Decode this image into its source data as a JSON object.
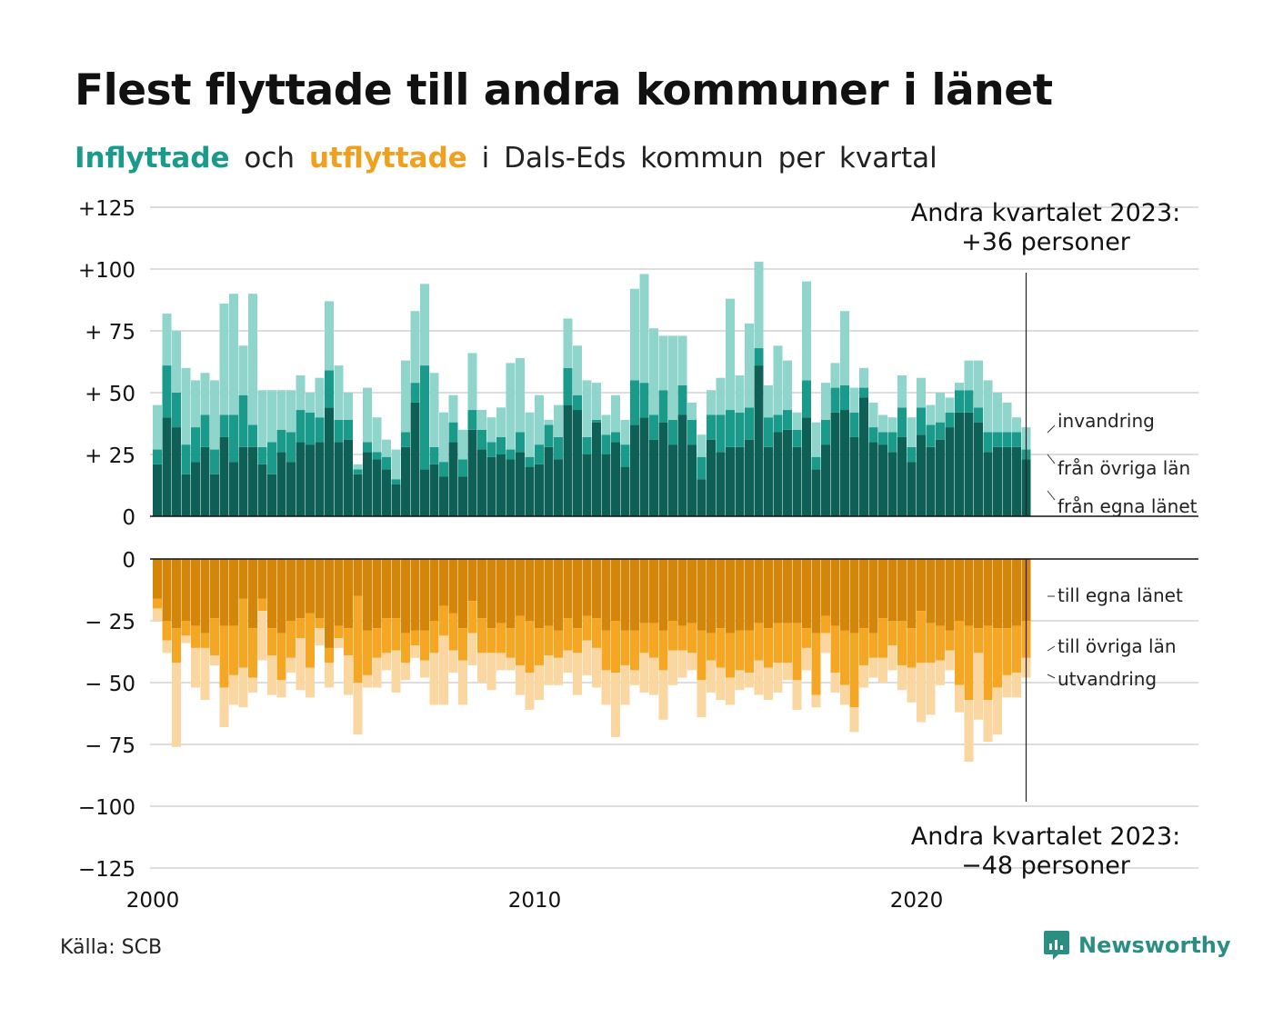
{
  "title": "Flest flyttade till andra kommuner i länet",
  "subtitle": {
    "part1": "Inflyttade",
    "part2": "och",
    "part3": "utflyttade",
    "part4": "i Dals-Eds kommun per kvartal"
  },
  "source": "Källa: SCB",
  "logo": "Newsworthy",
  "colors": {
    "in_egna": "#0e5f56",
    "in_ovriga": "#1a9a8a",
    "in_invandring": "#8fd5cc",
    "ut_egna": "#d4860b",
    "ut_ovriga": "#f5a623",
    "ut_utvandring": "#fad7a0",
    "grid": "#dddddd",
    "axis": "#111111"
  },
  "chart_data": {
    "type": "bar",
    "stacked": true,
    "x_start": 2000,
    "x_ticks": [
      "2000",
      "2010",
      "2020"
    ],
    "y_ticks_top": [
      "+125",
      "+100",
      "+ 75",
      "+ 50",
      "+ 25",
      "0"
    ],
    "y_ticks_bottom": [
      "0",
      "− 25",
      "− 50",
      "− 75",
      "−100",
      "−125"
    ],
    "ylim_top": [
      0,
      125
    ],
    "ylim_bottom": [
      -125,
      0
    ],
    "grid": true,
    "annotation_top": [
      "Andra kvartalet 2023:",
      "+36 personer"
    ],
    "annotation_bottom": [
      "Andra kvartalet 2023:",
      "−48 personer"
    ],
    "labels_in": [
      "invandring",
      "från övriga län",
      "från egna länet"
    ],
    "labels_out": [
      "till egna länet",
      "till övriga län",
      "utvandring"
    ],
    "inflyttade": {
      "fran_egna_lanet": [
        21,
        40,
        36,
        17,
        22,
        28,
        17,
        32,
        22,
        28,
        28,
        21,
        17,
        26,
        22,
        30,
        29,
        30,
        44,
        30,
        31,
        17,
        26,
        23,
        19,
        13,
        28,
        46,
        19,
        21,
        16,
        30,
        16,
        35,
        27,
        24,
        25,
        23,
        26,
        20,
        21,
        28,
        23,
        45,
        43,
        25,
        38,
        25,
        30,
        20,
        37,
        40,
        31,
        38,
        29,
        41,
        29,
        15,
        31,
        26,
        28,
        28,
        31,
        61,
        28,
        34,
        35,
        28,
        40,
        19,
        29,
        42,
        43,
        32,
        48,
        30,
        29,
        26,
        32,
        22,
        33,
        28,
        31,
        36,
        42,
        42,
        38,
        26,
        28,
        28,
        28,
        23
      ],
      "fran_ovriga_lan": [
        6,
        21,
        14,
        12,
        14,
        13,
        10,
        9,
        19,
        21,
        9,
        7,
        13,
        9,
        12,
        13,
        13,
        10,
        15,
        9,
        8,
        2,
        4,
        3,
        5,
        2,
        6,
        8,
        42,
        7,
        6,
        8,
        7,
        8,
        8,
        6,
        7,
        4,
        8,
        4,
        8,
        9,
        9,
        15,
        6,
        7,
        1,
        8,
        4,
        9,
        18,
        14,
        10,
        13,
        10,
        12,
        10,
        9,
        10,
        15,
        15,
        14,
        13,
        7,
        12,
        7,
        8,
        7,
        15,
        5,
        10,
        10,
        10,
        10,
        4,
        6,
        5,
        8,
        12,
        6,
        11,
        9,
        7,
        6,
        9,
        9,
        6,
        8,
        6,
        6,
        6,
        4
      ],
      "invandring": [
        18,
        21,
        25,
        31,
        19,
        17,
        28,
        45,
        49,
        20,
        53,
        23,
        21,
        16,
        17,
        14,
        8,
        16,
        28,
        22,
        11,
        2,
        22,
        14,
        7,
        12,
        29,
        29,
        33,
        30,
        20,
        11,
        12,
        23,
        8,
        10,
        12,
        35,
        30,
        18,
        20,
        2,
        13,
        20,
        20,
        23,
        15,
        8,
        15,
        10,
        37,
        44,
        35,
        22,
        34,
        20,
        7,
        9,
        10,
        15,
        45,
        15,
        34,
        35,
        13,
        28,
        20,
        7,
        40,
        14,
        15,
        10,
        30,
        10,
        8,
        10,
        7,
        6,
        13,
        12,
        12,
        8,
        12,
        6,
        3,
        12,
        19,
        21,
        16,
        12,
        6,
        9
      ]
    },
    "utflyttade": {
      "till_egna_lanet": [
        16,
        25,
        28,
        25,
        27,
        30,
        24,
        27,
        27,
        16,
        28,
        16,
        28,
        30,
        25,
        24,
        22,
        24,
        36,
        27,
        28,
        15,
        29,
        28,
        24,
        24,
        30,
        29,
        29,
        25,
        19,
        22,
        28,
        17,
        24,
        28,
        26,
        28,
        23,
        25,
        28,
        27,
        29,
        24,
        28,
        23,
        24,
        29,
        25,
        29,
        29,
        26,
        26,
        29,
        25,
        27,
        26,
        29,
        30,
        28,
        30,
        29,
        29,
        26,
        28,
        26,
        26,
        26,
        28,
        30,
        23,
        27,
        29,
        30,
        28,
        30,
        24,
        25,
        25,
        28,
        21,
        26,
        27,
        29,
        25,
        27,
        28,
        27,
        28,
        28,
        27,
        25
      ],
      "till_ovriga_lan": [
        4,
        8,
        14,
        6,
        9,
        6,
        15,
        25,
        20,
        28,
        20,
        5,
        11,
        19,
        15,
        8,
        22,
        4,
        6,
        5,
        11,
        35,
        18,
        12,
        14,
        13,
        12,
        6,
        12,
        13,
        12,
        15,
        13,
        13,
        14,
        10,
        12,
        12,
        20,
        21,
        15,
        12,
        11,
        13,
        10,
        10,
        12,
        16,
        21,
        14,
        16,
        12,
        14,
        16,
        12,
        10,
        12,
        20,
        11,
        16,
        18,
        16,
        17,
        15,
        16,
        16,
        16,
        23,
        8,
        25,
        7,
        19,
        22,
        30,
        15,
        10,
        16,
        10,
        18,
        16,
        21,
        16,
        14,
        8,
        26,
        30,
        10,
        30,
        24,
        19,
        19,
        15
      ],
      "utvandring": [
        5,
        5,
        34,
        3,
        16,
        21,
        4,
        16,
        12,
        16,
        6,
        20,
        16,
        7,
        6,
        21,
        12,
        7,
        10,
        4,
        16,
        21,
        5,
        12,
        7,
        17,
        7,
        5,
        7,
        21,
        28,
        9,
        18,
        13,
        12,
        15,
        7,
        5,
        12,
        15,
        14,
        12,
        11,
        9,
        17,
        14,
        16,
        14,
        26,
        16,
        6,
        16,
        15,
        20,
        14,
        11,
        7,
        15,
        13,
        13,
        11,
        8,
        6,
        14,
        13,
        12,
        7,
        12,
        9,
        5,
        8,
        8,
        8,
        10,
        9,
        8,
        10,
        10,
        10,
        14,
        24,
        21,
        10,
        8,
        11,
        25,
        27,
        17,
        19,
        9,
        10,
        8
      ]
    }
  }
}
